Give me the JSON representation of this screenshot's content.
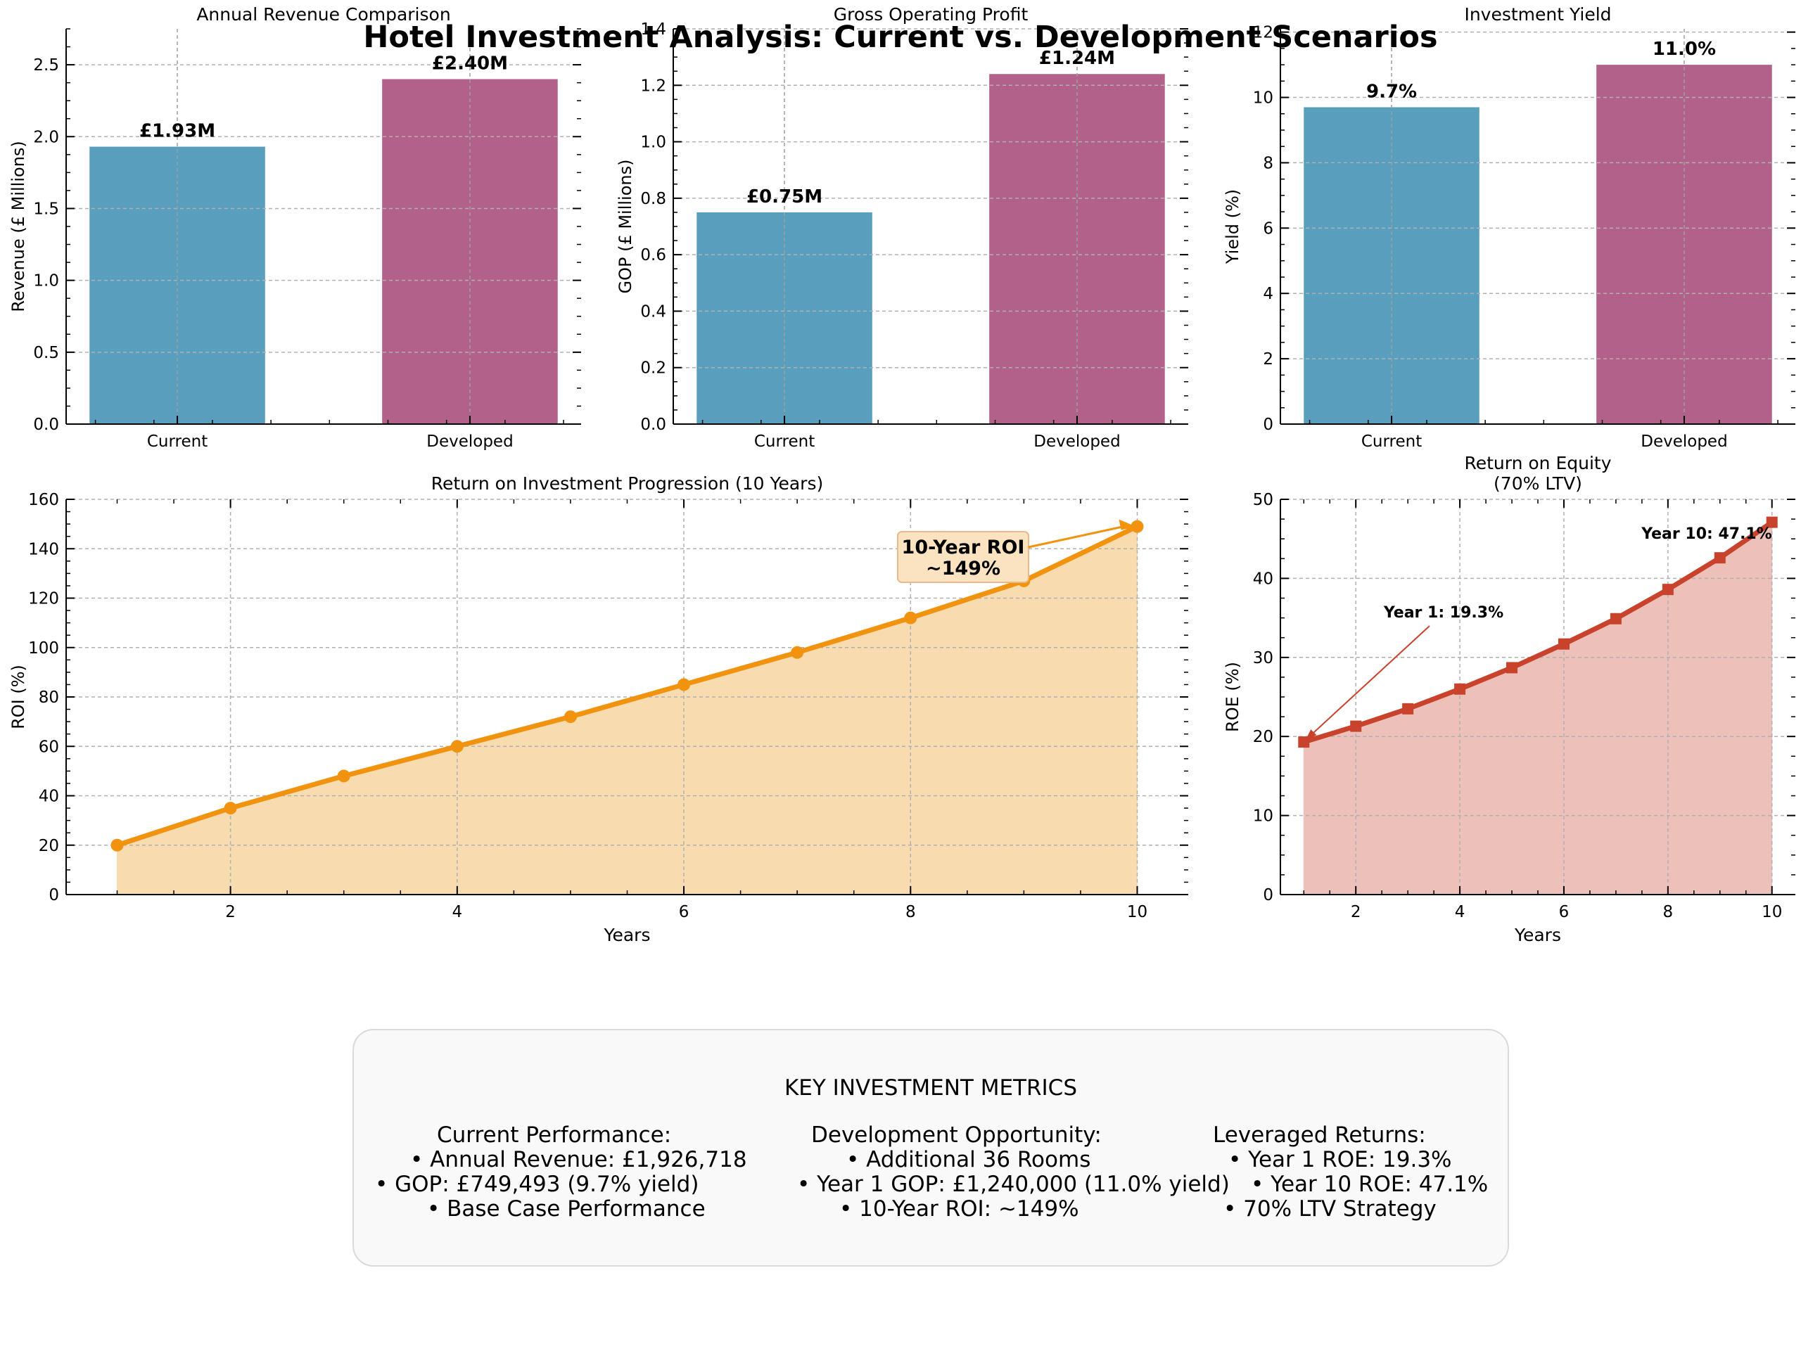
{
  "title": "Hotel Investment Analysis: Current vs. Development Scenarios",
  "colors": {
    "current": "#5a9ebd",
    "developed": "#b2628a",
    "roi": "#f2930f",
    "roi_fill": "#f8dcb0",
    "roe": "#c9422b",
    "roe_fill": "#edc1b9"
  },
  "chart_data": [
    {
      "id": "revenue",
      "type": "bar",
      "title": "Annual Revenue Comparison",
      "ylabel": "Revenue (£ Millions)",
      "xlabel": "",
      "categories": [
        "Current",
        "Developed"
      ],
      "values": [
        1.93,
        2.4
      ],
      "data_labels": [
        "£1.93M",
        "£2.40M"
      ],
      "ylim": [
        0,
        2.75
      ],
      "yticks": [
        0.0,
        0.5,
        1.0,
        1.5,
        2.0,
        2.5
      ],
      "ytick_labels": [
        "0.0",
        "0.5",
        "1.0",
        "1.5",
        "2.0",
        "2.5"
      ],
      "grid": true
    },
    {
      "id": "gop",
      "type": "bar",
      "title": "Gross Operating Profit",
      "ylabel": "GOP (£ Millions)",
      "xlabel": "",
      "categories": [
        "Current",
        "Developed"
      ],
      "values": [
        0.75,
        1.24
      ],
      "data_labels": [
        "£0.75M",
        "£1.24M"
      ],
      "ylim": [
        0,
        1.4
      ],
      "yticks": [
        0.0,
        0.2,
        0.4,
        0.6,
        0.8,
        1.0,
        1.2,
        1.4
      ],
      "ytick_labels": [
        "0.0",
        "0.2",
        "0.4",
        "0.6",
        "0.8",
        "1.0",
        "1.2",
        "1.4"
      ],
      "grid": true
    },
    {
      "id": "yield",
      "type": "bar",
      "title": "Investment Yield",
      "ylabel": "Yield (%)",
      "xlabel": "",
      "categories": [
        "Current",
        "Developed"
      ],
      "values": [
        9.7,
        11.0
      ],
      "data_labels": [
        "9.7%",
        "11.0%"
      ],
      "ylim": [
        0,
        12.1
      ],
      "yticks": [
        0,
        2,
        4,
        6,
        8,
        10,
        12
      ],
      "ytick_labels": [
        "0",
        "2",
        "4",
        "6",
        "8",
        "10",
        "12"
      ],
      "grid": true
    },
    {
      "id": "roi",
      "type": "line",
      "title": "Return on Investment Progression (10 Years)",
      "xlabel": "Years",
      "ylabel": "ROI (%)",
      "x": [
        1,
        2,
        3,
        4,
        5,
        6,
        7,
        8,
        9,
        10
      ],
      "values": [
        20,
        35,
        48,
        60,
        72,
        85,
        98,
        112,
        127,
        149
      ],
      "xlim": [
        0.55,
        10.45
      ],
      "ylim": [
        0,
        160
      ],
      "xticks": [
        2,
        4,
        6,
        8,
        10
      ],
      "xtick_labels": [
        "2",
        "4",
        "6",
        "8",
        "10"
      ],
      "yticks": [
        0,
        20,
        40,
        60,
        80,
        100,
        120,
        140,
        160
      ],
      "ytick_labels": [
        "0",
        "20",
        "40",
        "60",
        "80",
        "100",
        "120",
        "140",
        "160"
      ],
      "area_fill": true,
      "grid": true,
      "annotation": {
        "text_lines": [
          "10-Year ROI",
          "~149%"
        ],
        "x": 10,
        "y": 149
      }
    },
    {
      "id": "roe",
      "type": "line",
      "title_lines": [
        "Return on Equity",
        "(70% LTV)"
      ],
      "xlabel": "Years",
      "ylabel": "ROE (%)",
      "x": [
        1,
        2,
        3,
        4,
        5,
        6,
        7,
        8,
        9,
        10
      ],
      "values": [
        19.3,
        21.3,
        23.5,
        26.0,
        28.7,
        31.7,
        34.9,
        38.6,
        42.6,
        47.1
      ],
      "xlim": [
        0.55,
        10.45
      ],
      "ylim": [
        0,
        50
      ],
      "xticks": [
        2,
        4,
        6,
        8,
        10
      ],
      "xtick_labels": [
        "2",
        "4",
        "6",
        "8",
        "10"
      ],
      "yticks": [
        0,
        10,
        20,
        30,
        40,
        50
      ],
      "ytick_labels": [
        "0",
        "10",
        "20",
        "30",
        "40",
        "50"
      ],
      "area_fill": true,
      "grid": true,
      "annotations": [
        {
          "text": "Year 1: 19.3%",
          "x": 1,
          "y": 19.3
        },
        {
          "text": "Year 10: 47.1%",
          "x": 10,
          "y": 47.1
        }
      ]
    }
  ],
  "metrics": {
    "heading": "KEY INVESTMENT METRICS",
    "current": {
      "header": "Current Performance:",
      "items": [
        "• Annual Revenue: £1,926,718",
        "• GOP: £749,493 (9.7% yield)",
        "• Base Case Performance"
      ]
    },
    "development": {
      "header": "Development Opportunity:",
      "items": [
        "• Additional 36 Rooms",
        "• Year 1 GOP: £1,240,000 (11.0% yield)",
        "• 10-Year ROI: ~149%"
      ]
    },
    "leveraged": {
      "header": "Leveraged Returns:",
      "items": [
        "• Year 1 ROE: 19.3%",
        "• Year 10 ROE: 47.1%",
        "• 70% LTV Strategy"
      ]
    }
  }
}
